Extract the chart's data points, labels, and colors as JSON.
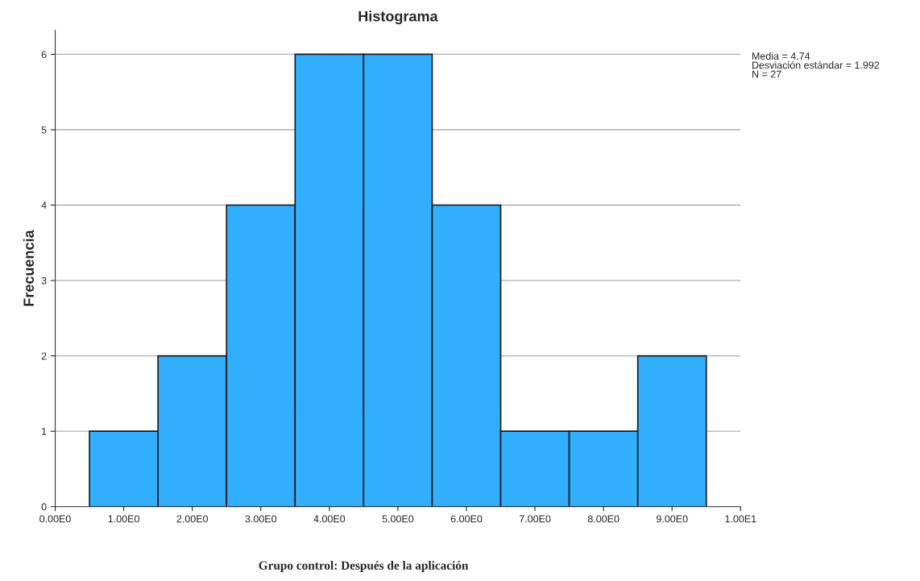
{
  "chart_data": {
    "type": "histogram",
    "title": "Histograma",
    "ylabel": "Frecuencia",
    "bins": [
      0.5,
      1.5,
      2.5,
      3.5,
      4.5,
      5.5,
      6.5,
      7.5,
      8.5,
      9.5
    ],
    "values": [
      1,
      2,
      4,
      6,
      6,
      4,
      1,
      1,
      2
    ],
    "color": "#31aefe",
    "xlim": [
      0,
      10
    ],
    "xticks": [
      {
        "value": 0,
        "label": "0.00E0"
      },
      {
        "value": 1,
        "label": "1.00E0"
      },
      {
        "value": 2,
        "label": "2.00E0"
      },
      {
        "value": 3,
        "label": "3.00E0"
      },
      {
        "value": 4,
        "label": "4.00E0"
      },
      {
        "value": 5,
        "label": "5.00E0"
      },
      {
        "value": 6,
        "label": "6.00E0"
      },
      {
        "value": 7,
        "label": "7.00E0"
      },
      {
        "value": 8,
        "label": "8.00E0"
      },
      {
        "value": 9,
        "label": "9.00E0"
      },
      {
        "value": 10,
        "label": "1.00E1"
      }
    ],
    "ylim": [
      0,
      6.32
    ],
    "yticks": [
      0,
      1,
      2,
      3,
      4,
      5,
      6
    ],
    "grid": "y",
    "annotations": [
      "Media = 4.74\nDesviación estándar = 1.992\nN = 27",
      "Grupo control: Después de la aplicación"
    ]
  }
}
